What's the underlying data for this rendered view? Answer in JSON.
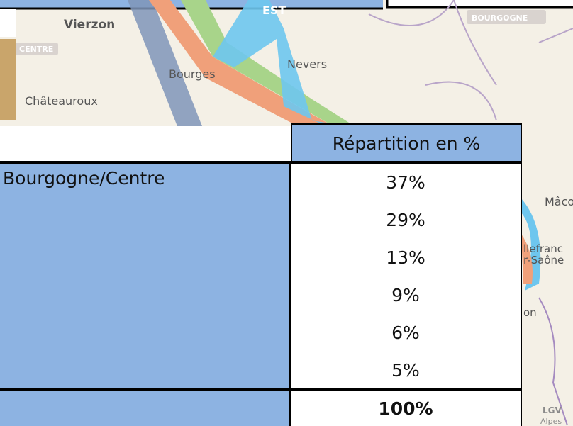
{
  "map": {
    "labels": [
      "EST",
      "Vierzon",
      "CENTRE",
      "Bourges",
      "Nevers",
      "Châteauroux",
      "BOURGOGNE",
      "Mâco",
      "llefranc",
      "r-Saône",
      "on",
      "LGV",
      "Alpes"
    ]
  },
  "table": {
    "header": [
      "",
      "Répartition en %"
    ],
    "rows": [
      [
        "Bourgogne/Centre",
        "37%"
      ],
      [
        "",
        "29%"
      ],
      [
        "",
        "13%"
      ],
      [
        "",
        "9%"
      ],
      [
        "",
        "6%"
      ],
      [
        "",
        "5%"
      ]
    ],
    "total": [
      "",
      "100%"
    ]
  }
}
